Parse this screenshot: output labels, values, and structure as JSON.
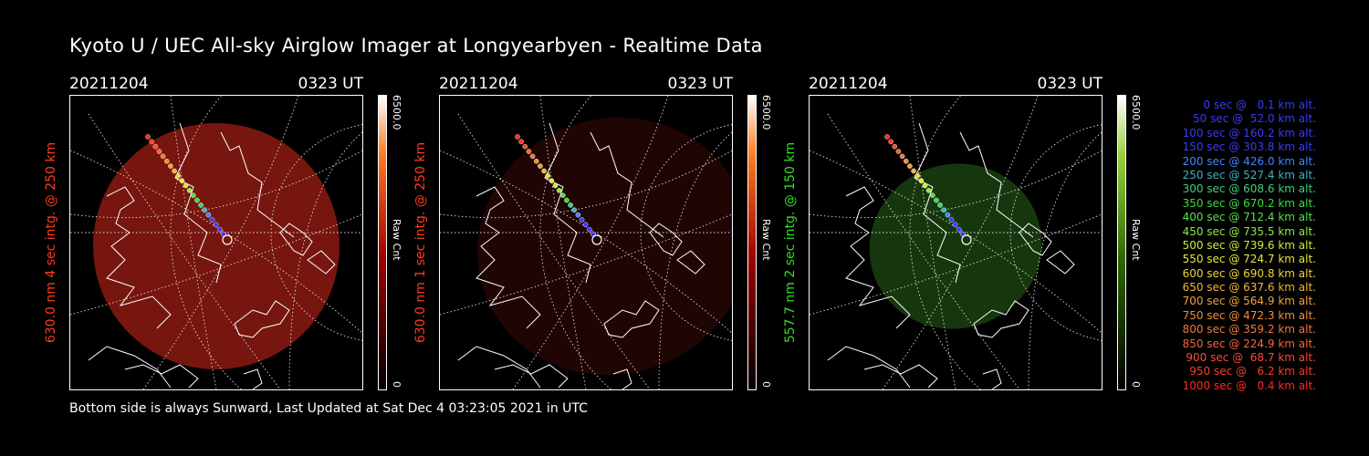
{
  "title": "Kyoto U / UEC All-sky Airglow Imager at Longyearbyen - Realtime Data",
  "footer": "Bottom side is always Sunward, Last Updated at Sat Dec  4 03:23:05 2021 in UTC",
  "panels": [
    {
      "date": "20211204",
      "time": "0323 UT",
      "side_label": "630.0 nm 4 sec intg. @ 250 km",
      "label_color": "#ff3a1a",
      "colorbar": {
        "max": "6500.0",
        "min": "0",
        "unit": "Raw Cnt",
        "scale_color": "#a00000"
      },
      "glow_color": "#8b1a10",
      "glow_opacity": 0.85
    },
    {
      "date": "20211204",
      "time": "0323 UT",
      "side_label": "630.0 nm 1 sec intg. @ 250 km",
      "label_color": "#ff3a1a",
      "colorbar": {
        "max": "6500.0",
        "min": "0",
        "unit": "Raw Cnt",
        "scale_color": "#a00000"
      },
      "glow_color": "#5a0d08",
      "glow_opacity": 0.35
    },
    {
      "date": "20211204",
      "time": "0323 UT",
      "side_label": "557.7 nm 2 sec intg. @ 150 km",
      "label_color": "#33dd22",
      "colorbar": {
        "max": "6500.0",
        "min": "0",
        "unit": "Raw Cnt",
        "scale_color": "#2f6a00"
      },
      "glow_color": "#1d4a12",
      "glow_opacity": 0.75
    }
  ],
  "legend": [
    {
      "text": "0 sec @   0.1 km alt.",
      "color": "#3a3aff"
    },
    {
      "text": "50 sec @  52.0 km alt.",
      "color": "#3a3aff"
    },
    {
      "text": "100 sec @ 160.2 km alt.",
      "color": "#3a3aff"
    },
    {
      "text": "150 sec @ 303.8 km alt.",
      "color": "#3a3aff"
    },
    {
      "text": "200 sec @ 426.0 km alt.",
      "color": "#3f86ff"
    },
    {
      "text": "250 sec @ 527.4 km alt.",
      "color": "#3ab4c0"
    },
    {
      "text": "300 sec @ 608.6 km alt.",
      "color": "#3ed27a"
    },
    {
      "text": "350 sec @ 670.2 km alt.",
      "color": "#3cdd3c"
    },
    {
      "text": "400 sec @ 712.4 km alt.",
      "color": "#55e04a"
    },
    {
      "text": "450 sec @ 735.5 km alt.",
      "color": "#8ee845"
    },
    {
      "text": "500 sec @ 739.6 km alt.",
      "color": "#c8ee3a"
    },
    {
      "text": "550 sec @ 724.7 km alt.",
      "color": "#e8e83a"
    },
    {
      "text": "600 sec @ 690.8 km alt.",
      "color": "#f2d23a"
    },
    {
      "text": "650 sec @ 637.6 km alt.",
      "color": "#f2b43a"
    },
    {
      "text": "700 sec @ 564.9 km alt.",
      "color": "#f2a03a"
    },
    {
      "text": "750 sec @ 472.3 km alt.",
      "color": "#f28c3a"
    },
    {
      "text": "800 sec @ 359.2 km alt.",
      "color": "#f2783a"
    },
    {
      "text": "850 sec @ 224.9 km alt.",
      "color": "#f2643a"
    },
    {
      "text": "900 sec @  68.7 km alt.",
      "color": "#ff4a2a"
    },
    {
      "text": "950 sec @   6.2 km alt.",
      "color": "#ff3a24"
    },
    {
      "text": "1000 sec @   0.4 km alt.",
      "color": "#ff2a1e"
    }
  ]
}
